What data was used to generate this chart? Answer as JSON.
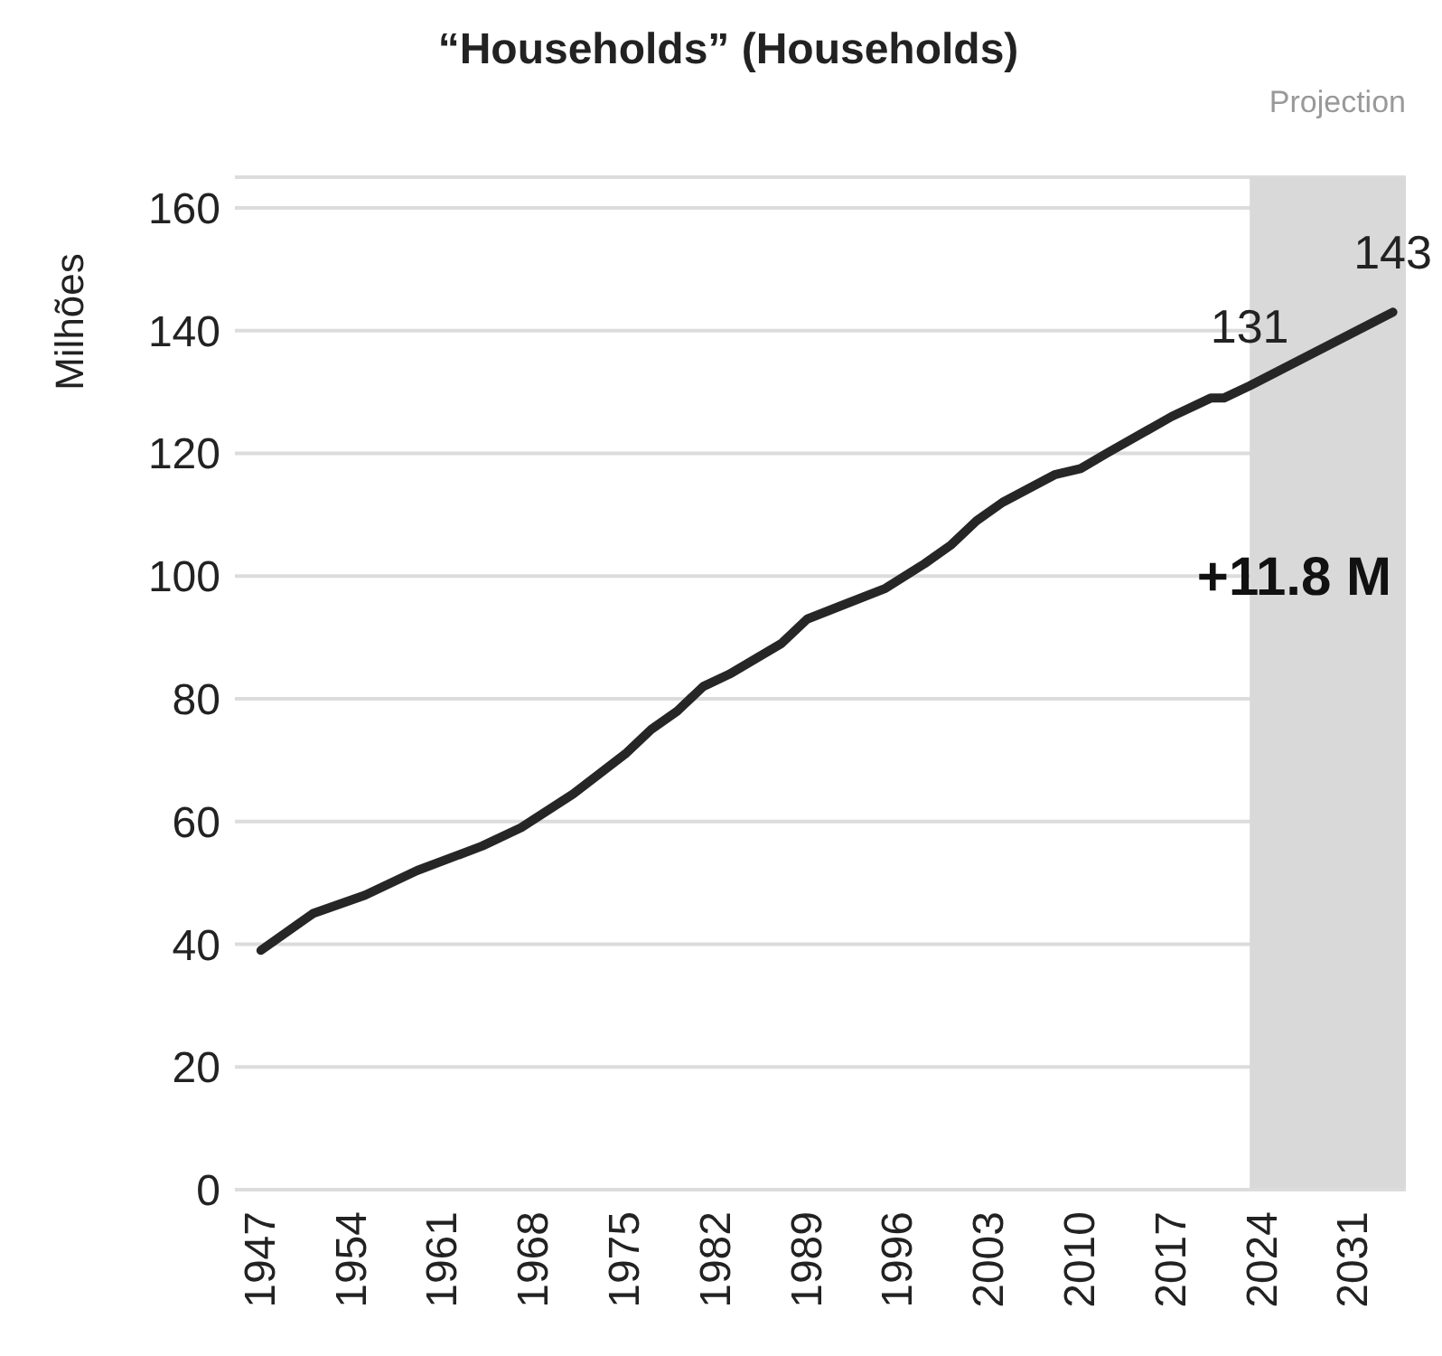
{
  "chart_data": {
    "type": "line",
    "title": "“Households” (Households)",
    "ylabel": "Milhões",
    "x": [
      1947,
      1951,
      1955,
      1959,
      1964,
      1967,
      1971,
      1975,
      1977,
      1979,
      1981,
      1983,
      1987,
      1989,
      1992,
      1995,
      1998,
      2000,
      2002,
      2004,
      2008,
      2010,
      2012,
      2017,
      2020,
      2021,
      2023,
      2034
    ],
    "series": [
      {
        "color": "#262626",
        "values": [
          39,
          45,
          48,
          52,
          56,
          59,
          64.5,
          71,
          75,
          78,
          82,
          84,
          89,
          93,
          95.5,
          98,
          102,
          105,
          109,
          112,
          116.5,
          117.5,
          120,
          126,
          129,
          129,
          131,
          143
        ],
        "value_labels": [
          null,
          null,
          null,
          null,
          null,
          null,
          null,
          null,
          null,
          null,
          null,
          null,
          null,
          null,
          null,
          null,
          null,
          null,
          null,
          null,
          null,
          null,
          null,
          null,
          null,
          null,
          "131",
          "143"
        ]
      }
    ],
    "xlim": [
      1945,
      2035
    ],
    "xticks": [
      1947,
      1954,
      1961,
      1968,
      1975,
      1982,
      1989,
      1996,
      2003,
      2010,
      2017,
      2024,
      2031
    ],
    "ylim": [
      0,
      165
    ],
    "yticks": [
      0,
      20,
      40,
      60,
      80,
      100,
      120,
      140,
      160
    ],
    "grid": "y",
    "marker": "none",
    "line_style": "solid",
    "bands": [
      {
        "axis": "x",
        "from": 2023,
        "to": 2035,
        "label": "Projection",
        "color": "#d9d9d9"
      }
    ],
    "annotations": [
      "+11.8 M"
    ]
  }
}
